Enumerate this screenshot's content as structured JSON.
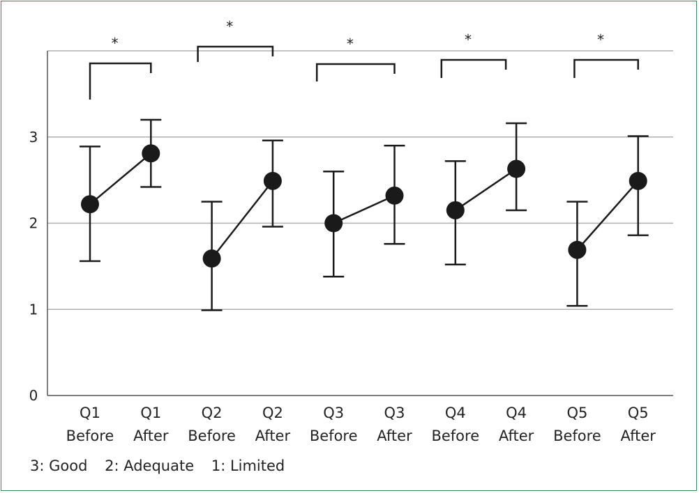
{
  "chart_data": {
    "type": "line",
    "title": "",
    "xlabel": "",
    "ylabel": "",
    "ylim": [
      0,
      4
    ],
    "yticks": [
      0,
      1,
      2,
      3
    ],
    "grid": true,
    "categories": [
      [
        "Q1",
        "Before"
      ],
      [
        "Q1",
        "After"
      ],
      [
        "Q2",
        "Before"
      ],
      [
        "Q2",
        "After"
      ],
      [
        "Q3",
        "Before"
      ],
      [
        "Q3",
        "After"
      ],
      [
        "Q4",
        "Before"
      ],
      [
        "Q4",
        "After"
      ],
      [
        "Q5",
        "Before"
      ],
      [
        "Q5",
        "After"
      ]
    ],
    "series": [
      {
        "values": [
          2.22,
          2.81,
          1.59,
          2.49,
          2.0,
          2.32,
          2.15,
          2.63,
          1.69,
          2.49
        ],
        "error_low": [
          1.56,
          2.42,
          0.99,
          1.96,
          1.38,
          1.76,
          1.52,
          2.15,
          1.04,
          1.86
        ],
        "error_high": [
          2.89,
          3.2,
          2.25,
          2.96,
          2.6,
          2.9,
          2.72,
          3.16,
          2.25,
          3.01
        ]
      }
    ],
    "pairs": [
      [
        0,
        1
      ],
      [
        2,
        3
      ],
      [
        4,
        5
      ],
      [
        6,
        7
      ],
      [
        8,
        9
      ]
    ],
    "significance": [
      {
        "label": "*",
        "pair": [
          0,
          1
        ]
      },
      {
        "label": "*",
        "pair": [
          2,
          3
        ]
      },
      {
        "label": "*",
        "pair": [
          4,
          5
        ]
      },
      {
        "label": "*",
        "pair": [
          6,
          7
        ]
      },
      {
        "label": "*",
        "pair": [
          8,
          9
        ]
      }
    ],
    "legend_text": [
      "3: Good",
      "2: Adequate",
      "1: Limited"
    ]
  },
  "colors": {
    "frame": "#2e8b57",
    "grid": "#b0b0b0",
    "marks": "#1a1a1a"
  }
}
